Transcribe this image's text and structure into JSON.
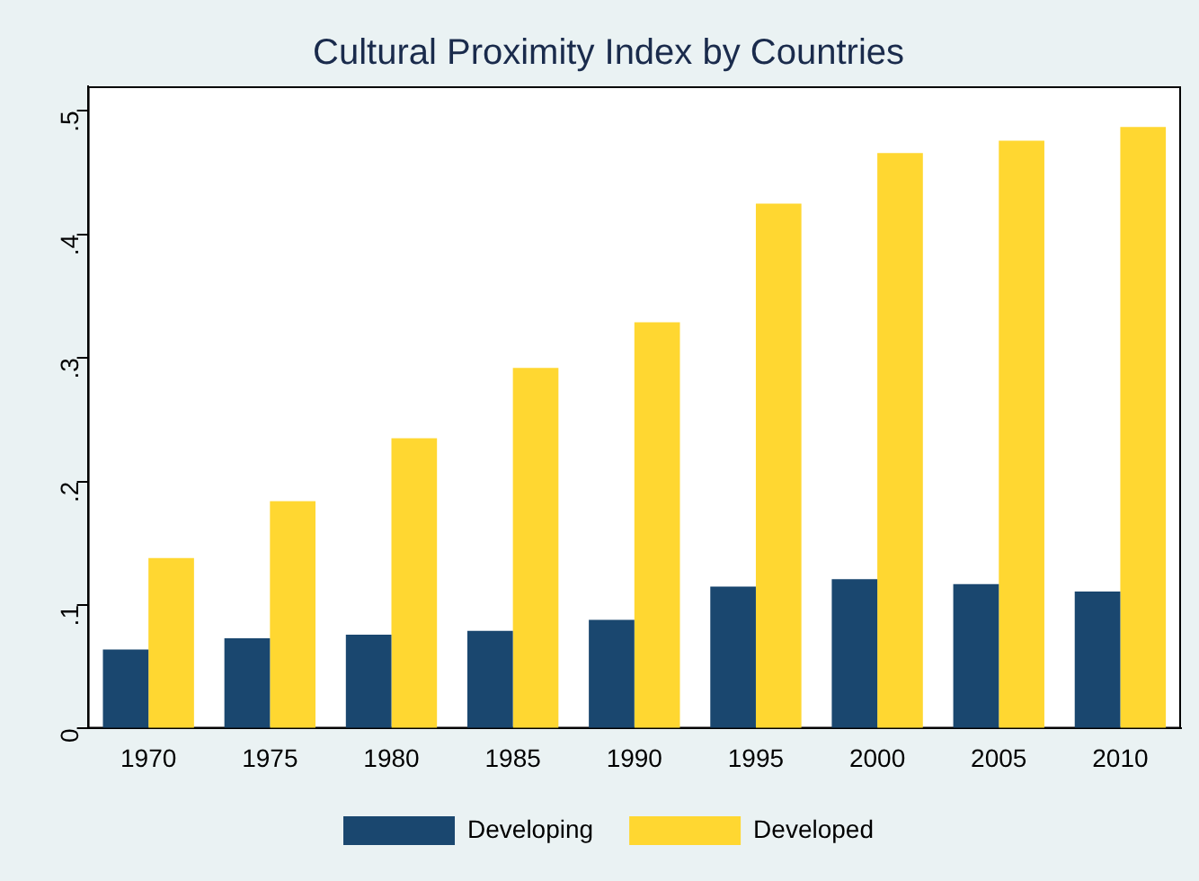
{
  "chart_data": {
    "type": "bar",
    "title": "Cultural Proximity Index by Countries",
    "categories": [
      "1970",
      "1975",
      "1980",
      "1985",
      "1990",
      "1995",
      "2000",
      "2005",
      "2010"
    ],
    "series": [
      {
        "name": "Developing",
        "color": "#1a476f",
        "values": [
          0.064,
          0.073,
          0.076,
          0.079,
          0.088,
          0.115,
          0.121,
          0.117,
          0.111
        ]
      },
      {
        "name": "Developed",
        "color": "#ffd731",
        "values": [
          0.138,
          0.184,
          0.235,
          0.292,
          0.329,
          0.425,
          0.466,
          0.476,
          0.487
        ]
      }
    ],
    "ylim": [
      0,
      0.52
    ],
    "yticks": [
      0,
      {
        "value": 0.1,
        "label": ".1"
      },
      {
        "value": 0.2,
        "label": ".2"
      },
      {
        "value": 0.3,
        "label": ".3"
      },
      {
        "value": 0.4,
        "label": ".4"
      },
      {
        "value": 0.5,
        "label": ".5"
      }
    ],
    "grid": false,
    "legend": "bottom"
  }
}
